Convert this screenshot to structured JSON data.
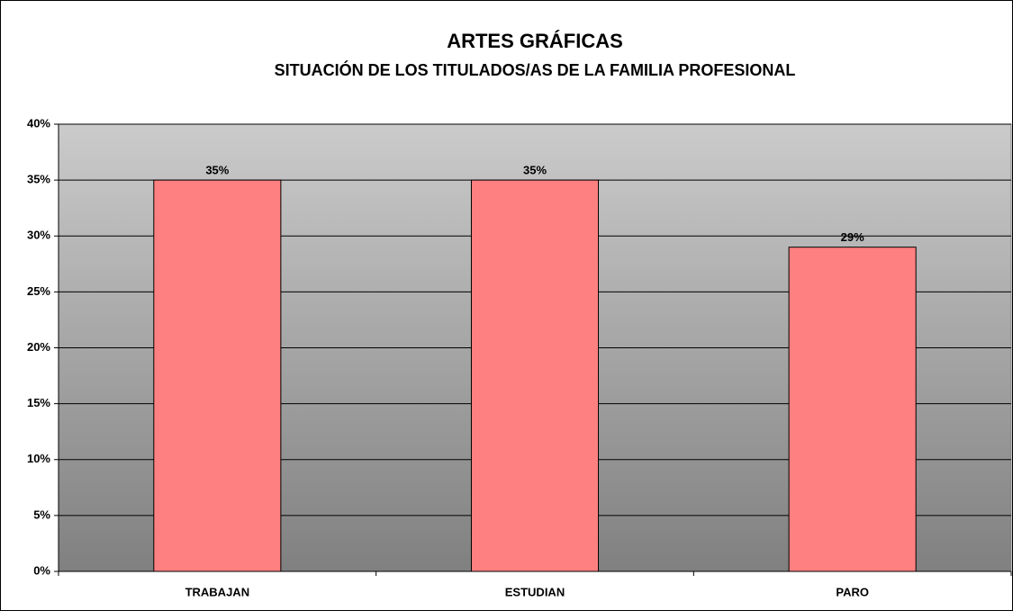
{
  "chart_data": {
    "type": "bar",
    "title": "ARTES GRÁFICAS",
    "subtitle": "SITUACIÓN DE LOS TITULADOS/AS DE LA FAMILIA PROFESIONAL",
    "categories": [
      "TRABAJAN",
      "ESTUDIAN",
      "PARO"
    ],
    "values": [
      35,
      35,
      29
    ],
    "value_labels": [
      "35%",
      "35%",
      "29%"
    ],
    "color": "#ff8080",
    "ylim": [
      0,
      40
    ],
    "yticks": [
      {
        "value": 0,
        "label": "0%"
      },
      {
        "value": 5,
        "label": "5%"
      },
      {
        "value": 10,
        "label": "10%"
      },
      {
        "value": 15,
        "label": "15%"
      },
      {
        "value": 20,
        "label": "20%"
      },
      {
        "value": 25,
        "label": "25%"
      },
      {
        "value": 30,
        "label": "30%"
      },
      {
        "value": 35,
        "label": "35%"
      },
      {
        "value": 40,
        "label": "40%"
      }
    ],
    "grid": true
  }
}
